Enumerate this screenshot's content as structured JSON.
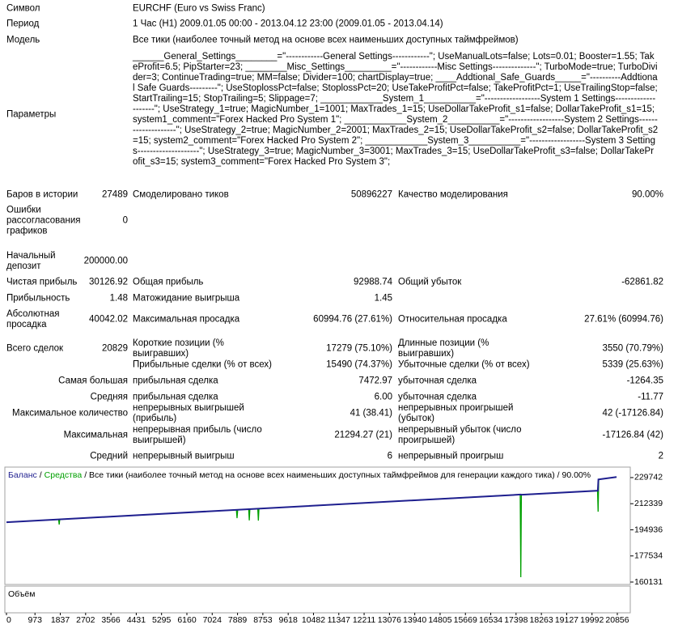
{
  "report": {
    "header": [
      {
        "label": "Символ",
        "value": "EURCHF (Euro vs Swiss Franc)"
      },
      {
        "label": "Период",
        "value": "1 Час (H1) 2009.01.05 00:00 - 2013.04.12 23:00 (2009.01.05 - 2013.04.14)"
      },
      {
        "label": "Модель",
        "value": "Все тики (наиболее точный метод на основе всех наименьших доступных таймфреймов)"
      },
      {
        "label": "Параметры",
        "value": "______General_Settings________=\"------------General Settings------------\"; UseManualLots=false; Lots=0.01; Booster=1.55; TakeProfit=6.5; PipStarter=23; ________Misc_Settings_________=\"------------Misc Settings--------------\"; TurboMode=true; TurboDivider=3; ContinueTrading=true; MM=false; Divider=100; chartDisplay=true; ____Addtional_Safe_Guards_____=\"----------Addtional Safe Guards---------\"; UseStoplossPct=false; StoplossPct=20; UseTakeProfitPct=false; TakeProfitPct=1; UseTrailingStop=false; StartTrailing=15; StopTrailing=5; Slippage=7; ____________System_1__________=\"------------------System 1 Settings--------------------\"; UseStrategy_1=true; MagicNumber_1=1001; MaxTrades_1=15; UseDollarTakeProfit_s1=false; DollarTakeProfit_s1=15; system1_comment=\"Forex Hacked Pro System 1\"; ____________System_2__________=\"------------------System 2 Settings--------------------\"; UseStrategy_2=true; MagicNumber_2=2001; MaxTrades_2=15; UseDollarTakeProfit_s2=false; DollarTakeProfit_s2=15; system2_comment=\"Forex Hacked Pro System 2\"; ____________System_3__________=\"------------------System 3 Settings--------------------\"; UseStrategy_3=true; MagicNumber_3=3001; MaxTrades_3=15; UseDollarTakeProfit_s3=false; DollarTakeProfit_s3=15; system3_comment=\"Forex Hacked Pro System 3\";"
      }
    ],
    "rows": [
      [
        "Баров в истории",
        "27489",
        "Смоделировано тиков",
        "50896227",
        "Качество моделирования",
        "90.00%"
      ],
      [
        "Ошибки рассогласования графиков",
        "0"
      ],
      [
        "Начальный депозит",
        "200000.00"
      ],
      [
        "Чистая прибыль",
        "30126.92",
        "Общая прибыль",
        "92988.74",
        "Общий убыток",
        "-62861.82"
      ],
      [
        "Прибыльность",
        "1.48",
        "Матожидание выигрыша",
        "1.45"
      ],
      [
        "Абсолютная просадка",
        "40042.02",
        "Максимальная просадка",
        "60994.76 (27.61%)",
        "Относительная просадка",
        "27.61% (60994.76)"
      ],
      [
        "Всего сделок",
        "20829",
        "Короткие позиции (% выигравших)",
        "17279 (75.10%)",
        "Длинные позиции (% выигравших)",
        "3550 (70.79%)"
      ],
      [
        null,
        null,
        "Прибыльные сделки (% от всех)",
        "15490 (74.37%)",
        "Убыточные сделки (% от всех)",
        "5339 (25.63%)"
      ],
      [
        "Самая большая",
        "прибыльная сделка",
        "7472.97",
        "убыточная сделка",
        "-1264.35"
      ],
      [
        "Средняя",
        "прибыльная сделка",
        "6.00",
        "убыточная сделка",
        "-11.77"
      ],
      [
        "Максимальное количество",
        "непрерывных выигрышей (прибыль)",
        "41 (38.41)",
        "непрерывных проигрышей (убыток)",
        "42 (-17126.84)"
      ],
      [
        "Максимальная",
        "непрерывная прибыль (число выигрышей)",
        "21294.27 (21)",
        "непрерывный убыток (число проигрышей)",
        "-17126.84 (42)"
      ],
      [
        "Средний",
        "непрерывный выигрыш",
        "6",
        "непрерывный проигрыш",
        "2"
      ]
    ]
  },
  "chart_data": {
    "type": "line",
    "legend_separator": "/",
    "subtitle": "/ Все тики (наиболее точный метод на основе всех наименьших доступных таймфреймов для генерации каждого тика) / 90.00%",
    "volume_label": "Объём",
    "xlim": [
      0,
      21270
    ],
    "xticks": [
      0,
      973,
      1837,
      2702,
      3566,
      4431,
      5295,
      6160,
      7024,
      7889,
      8753,
      9618,
      10482,
      11347,
      12211,
      13076,
      13940,
      14805,
      15669,
      16534,
      17398,
      18263,
      19127,
      19992,
      20856
    ],
    "ylim": [
      158520,
      236190
    ],
    "yticks": [
      160131,
      177534,
      194936,
      212339,
      229742
    ],
    "series": [
      {
        "name": "Средства",
        "color": "#00a000",
        "x": [
          0,
          1780,
          1800,
          1820,
          7850,
          7872,
          7895,
          8270,
          8290,
          8310,
          8580,
          8600,
          8620,
          17540,
          17560,
          17580,
          20180,
          20200,
          20220,
          20829
        ],
        "values": [
          200000,
          201870,
          198500,
          201910,
          208240,
          202700,
          208290,
          208680,
          201200,
          208730,
          209010,
          201100,
          209050,
          218420,
          163400,
          218300,
          221000,
          207000,
          228500,
          230127
        ]
      },
      {
        "name": "Баланс",
        "color": "#1f1f8f",
        "x": [
          0,
          17550,
          17600,
          20190,
          20210,
          20829
        ],
        "values": [
          200000,
          218430,
          218300,
          221000,
          228500,
          230127
        ]
      }
    ]
  }
}
